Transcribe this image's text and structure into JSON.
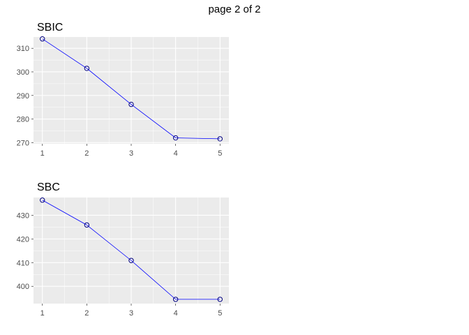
{
  "page": {
    "caption": "page 2 of 2"
  },
  "style": {
    "panel_bg": "#ebebeb",
    "grid": "#ffffff",
    "series_color": "#0000ff"
  },
  "chart_data": [
    {
      "type": "line",
      "title": "SBIC",
      "xlabel": "",
      "ylabel": "",
      "x": [
        1,
        2,
        3,
        4,
        5
      ],
      "values": [
        314,
        301.5,
        286.2,
        272.0,
        271.6
      ],
      "xlim": [
        0.8,
        5.2
      ],
      "ylim": [
        269.5,
        314.8
      ],
      "yticks": [
        270,
        280,
        290,
        300,
        310
      ],
      "xticks": [
        1,
        2,
        3,
        4,
        5
      ],
      "grid": true,
      "marker": "open-circle"
    },
    {
      "type": "line",
      "title": "SBC",
      "xlabel": "",
      "ylabel": "",
      "x": [
        1,
        2,
        3,
        4,
        5
      ],
      "values": [
        436.4,
        425.9,
        410.9,
        394.5,
        394.5
      ],
      "xlim": [
        0.8,
        5.2
      ],
      "ylim": [
        392.7,
        437.5
      ],
      "yticks": [
        400,
        410,
        420,
        430
      ],
      "xticks": [
        1,
        2,
        3,
        4,
        5
      ],
      "grid": true,
      "marker": "open-circle"
    }
  ]
}
